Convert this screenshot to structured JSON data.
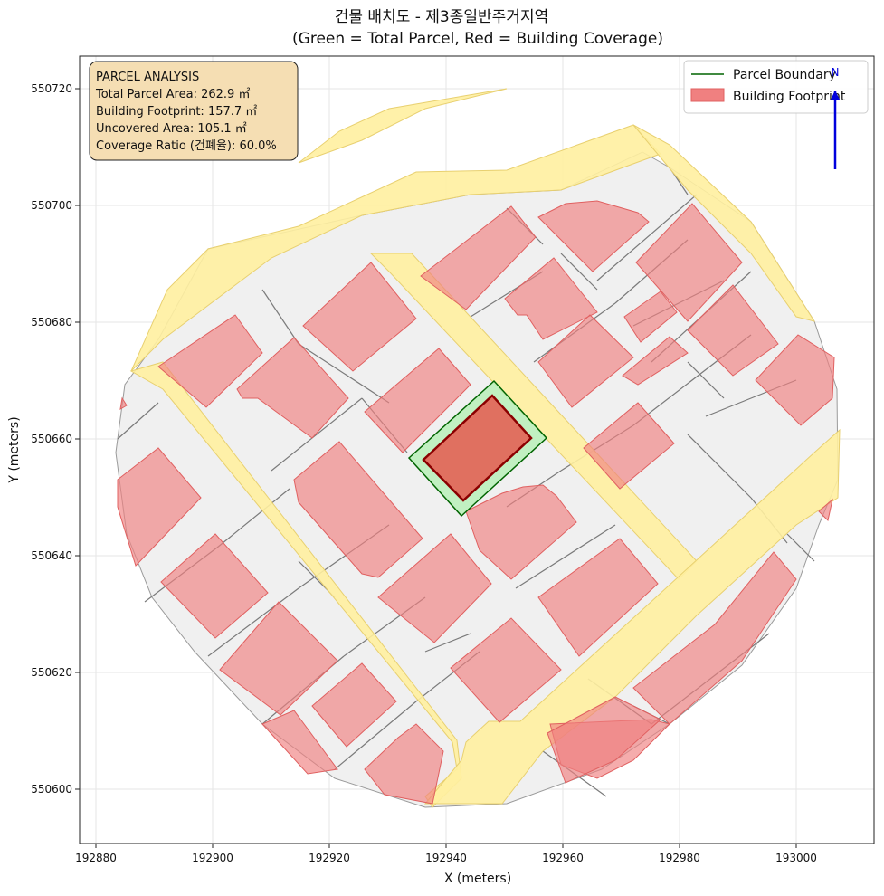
{
  "title_line1": "건물 배치도 - 제3종일반주거지역",
  "title_line2": "(Green = Total Parcel, Red = Building Coverage)",
  "x_axis_label": "X (meters)",
  "y_axis_label": "Y (meters)",
  "x_ticks": [
    "192880",
    "192900",
    "192920",
    "192940",
    "192960",
    "192980",
    "193000"
  ],
  "y_ticks": [
    "550600",
    "550620",
    "550640",
    "550660",
    "550680",
    "550700",
    "550720"
  ],
  "info_box": {
    "heading": "PARCEL ANALYSIS",
    "total_area": "Total Parcel Area: 262.9 ㎡",
    "footprint": "Building Footprint: 157.7 ㎡",
    "uncovered": "Uncovered Area: 105.1 ㎡",
    "coverage": "Coverage Ratio (건폐율): 60.0%"
  },
  "legend": {
    "parcel_boundary": "Parcel Boundary",
    "building_footprint": "Building Footprint"
  },
  "north_arrow_label": "N",
  "colors": {
    "parcel_fill": "#b8f0b8",
    "parcel_edge": "#006400",
    "building_fill": "#f08080",
    "building_edge": "#8b0000",
    "road_fill": "#fff0a0",
    "block_fill": "#f0f0f0",
    "info_bg": "#f5deb3",
    "north_arrow": "#0000dd"
  }
}
